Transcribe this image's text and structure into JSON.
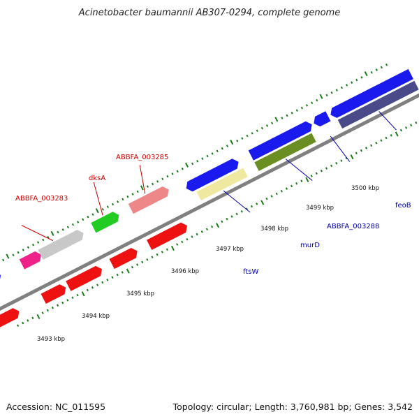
{
  "title": "Acinetobacter baumannii AB307-0294, complete genome",
  "footer": {
    "accession": "Accession: NC_011595",
    "summary": "Topology: circular; Length: 3,760,981 bp; Genes: 3,542"
  },
  "colors": {
    "backbone": "#808080",
    "tick": "#1a7a1a",
    "forward_label": "#0000aa",
    "reverse_label": "#cc0000"
  },
  "tick_labels": [
    "3493 kbp",
    "3494 kbp",
    "3495 kbp",
    "3496 kbp",
    "3497 kbp",
    "3498 kbp",
    "3499 kbp",
    "3500 kbp"
  ],
  "genes": [
    {
      "label": "ABBFA_003283",
      "color": "#cc0000"
    },
    {
      "label": "dksA",
      "color": "#cc0000"
    },
    {
      "label": "ABBFA_003285",
      "color": "#cc0000"
    },
    {
      "label": "ftsW",
      "color": "#0000aa"
    },
    {
      "label": "murD",
      "color": "#0000aa"
    },
    {
      "label": "ABBFA_003288",
      "color": "#0000aa"
    },
    {
      "label": "feoB",
      "color": "#0000aa"
    }
  ]
}
